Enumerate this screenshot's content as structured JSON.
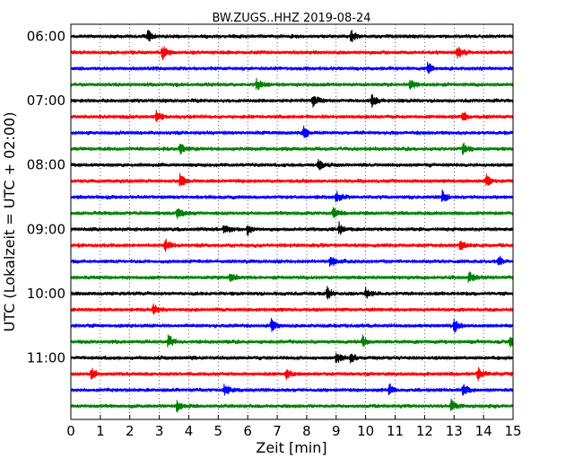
{
  "chart_data": {
    "type": "line",
    "title": "BW.ZUGS..HHZ 2019-08-24",
    "xlabel": "Zeit  [min]",
    "ylabel": "UTC (Lokalzeit = UTC + 02:00)",
    "xlim": [
      0,
      15
    ],
    "x_ticks": [
      "0",
      "1",
      "2",
      "3",
      "4",
      "5",
      "6",
      "7",
      "8",
      "9",
      "10",
      "11",
      "12",
      "13",
      "14",
      "15"
    ],
    "y_ticks": [
      "06:00",
      "07:00",
      "08:00",
      "09:00",
      "10:00",
      "11:00"
    ],
    "grid": "vertical dotted at every minute",
    "trace_colors": [
      "#000000",
      "#ff0000",
      "#0000ff",
      "#008000"
    ],
    "traces": [
      {
        "start": "06:00",
        "events": [
          2.6,
          9.5
        ]
      },
      {
        "start": "06:15",
        "events": [
          3.1,
          13.1
        ]
      },
      {
        "start": "06:30",
        "events": [
          12.1
        ]
      },
      {
        "start": "06:45",
        "events": [
          6.3,
          11.5
        ]
      },
      {
        "start": "07:00",
        "events": [
          8.2,
          10.2
        ]
      },
      {
        "start": "07:15",
        "events": [
          2.9,
          13.3
        ]
      },
      {
        "start": "07:30",
        "events": [
          7.9
        ]
      },
      {
        "start": "07:45",
        "events": [
          3.7,
          13.3
        ]
      },
      {
        "start": "08:00",
        "events": [
          8.4
        ]
      },
      {
        "start": "08:15",
        "events": [
          14.1,
          3.7
        ]
      },
      {
        "start": "08:30",
        "events": [
          9.0,
          12.6
        ]
      },
      {
        "start": "08:45",
        "events": [
          3.6,
          8.9
        ]
      },
      {
        "start": "09:00",
        "events": [
          5.2,
          6.0,
          9.1
        ]
      },
      {
        "start": "09:15",
        "events": [
          3.2,
          13.2
        ]
      },
      {
        "start": "09:30",
        "events": [
          8.8,
          14.5
        ]
      },
      {
        "start": "09:45",
        "events": [
          5.4,
          13.5
        ]
      },
      {
        "start": "10:00",
        "events": [
          8.7,
          10.0
        ]
      },
      {
        "start": "10:15",
        "events": [
          2.8
        ]
      },
      {
        "start": "10:30",
        "events": [
          6.8,
          13.0
        ]
      },
      {
        "start": "10:45",
        "events": [
          3.3,
          9.9,
          14.9
        ]
      },
      {
        "start": "11:00",
        "events": [
          9.0,
          9.5
        ]
      },
      {
        "start": "11:15",
        "events": [
          0.7,
          7.3,
          13.8
        ]
      },
      {
        "start": "11:30",
        "events": [
          5.2,
          10.8,
          13.3
        ]
      },
      {
        "start": "11:45",
        "events": [
          3.6,
          12.9
        ]
      }
    ]
  }
}
